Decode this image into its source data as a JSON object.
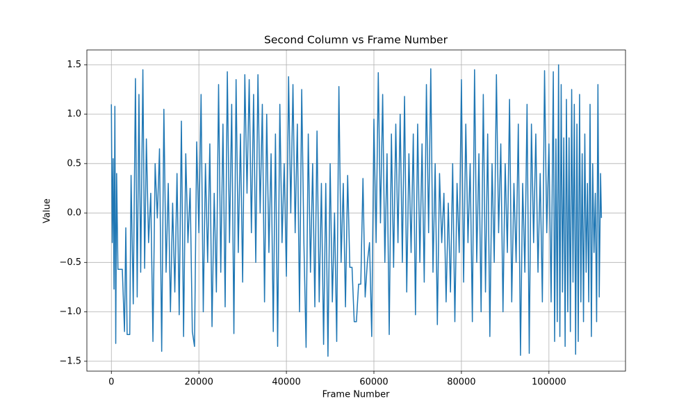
{
  "chart_data": {
    "type": "line",
    "title": "Second Column vs Frame Number",
    "xlabel": "Frame Number",
    "ylabel": "Value",
    "x": [
      0,
      200,
      400,
      600,
      800,
      1000,
      1200,
      1500,
      2500,
      3000,
      3300,
      3600,
      4200,
      4500,
      5000,
      5500,
      5900,
      6300,
      6700,
      7200,
      7600,
      8000,
      8500,
      9000,
      9500,
      10000,
      10500,
      11000,
      11500,
      12000,
      12500,
      13000,
      13500,
      14000,
      14500,
      15000,
      15500,
      16000,
      16500,
      17000,
      17500,
      18000,
      18500,
      19000,
      19500,
      20000,
      20500,
      21000,
      21500,
      22000,
      22500,
      23000,
      23500,
      24000,
      24500,
      25000,
      25500,
      26000,
      26500,
      27000,
      27500,
      28000,
      28500,
      29000,
      29500,
      30000,
      30500,
      31000,
      31500,
      32000,
      32500,
      33000,
      33500,
      34000,
      34500,
      35000,
      35500,
      36000,
      36500,
      37000,
      37500,
      38000,
      38500,
      39000,
      39500,
      40000,
      40500,
      41000,
      41500,
      42000,
      42500,
      43000,
      43500,
      44000,
      44500,
      45000,
      45500,
      46000,
      46500,
      47000,
      47500,
      48000,
      48500,
      49000,
      49500,
      50000,
      50500,
      51000,
      51500,
      52000,
      52500,
      53000,
      53500,
      54000,
      54500,
      55000,
      55500,
      56000,
      56500,
      57000,
      57500,
      58000,
      58500,
      59000,
      59500,
      60000,
      60500,
      61000,
      61500,
      62000,
      62500,
      63000,
      63500,
      64000,
      64500,
      65000,
      65500,
      66000,
      66500,
      67000,
      67500,
      68000,
      68500,
      69000,
      69500,
      70000,
      70500,
      71000,
      71500,
      72000,
      72500,
      73000,
      73500,
      74000,
      74500,
      75000,
      75500,
      76000,
      76500,
      77000,
      77500,
      78000,
      78500,
      79000,
      79500,
      80000,
      80500,
      81000,
      81500,
      82000,
      82500,
      83000,
      83500,
      84000,
      84500,
      85000,
      85500,
      86000,
      86500,
      87000,
      87500,
      88000,
      88500,
      89000,
      89500,
      90000,
      90500,
      91000,
      91500,
      92000,
      92500,
      93000,
      93500,
      94000,
      94500,
      95000,
      95500,
      96000,
      96500,
      97000,
      97500,
      98000,
      98500,
      99000,
      99500,
      100000,
      100500,
      101000,
      101300,
      101600,
      101900,
      102200,
      102500,
      102800,
      103100,
      103400,
      103700,
      104000,
      104300,
      104600,
      104900,
      105200,
      105500,
      105800,
      106100,
      106400,
      106700,
      107000,
      107300,
      107600,
      107900,
      108200,
      108500,
      108800,
      109100,
      109400,
      109700,
      110000,
      110300,
      110600,
      110900,
      111200,
      111500,
      111800,
      112000
    ],
    "series": [
      {
        "color": "#1f77b4",
        "values": [
          1.1,
          -0.3,
          0.55,
          -0.77,
          1.08,
          -1.32,
          0.4,
          -0.57,
          -0.57,
          -1.2,
          -0.15,
          -1.23,
          -1.23,
          0.38,
          -0.92,
          1.36,
          -0.85,
          1.2,
          -0.6,
          1.45,
          -0.56,
          0.75,
          -0.3,
          0.2,
          -1.3,
          0.5,
          -0.05,
          0.65,
          -1.4,
          1.05,
          -0.6,
          0.3,
          -1.0,
          0.1,
          -0.8,
          0.4,
          -1.03,
          0.93,
          -1.25,
          0.6,
          -0.3,
          0.25,
          -1.2,
          -1.35,
          0.72,
          -0.2,
          1.2,
          -1.0,
          0.5,
          -0.5,
          0.7,
          -1.15,
          0.2,
          -0.8,
          1.3,
          -0.6,
          0.9,
          -0.95,
          1.43,
          -0.3,
          1.1,
          -1.22,
          1.35,
          -0.4,
          0.8,
          -0.7,
          1.4,
          0.2,
          1.35,
          -0.2,
          1.2,
          -0.5,
          1.4,
          0.0,
          1.1,
          -0.9,
          1.0,
          -0.4,
          0.6,
          -1.2,
          0.8,
          -1.35,
          1.1,
          -0.3,
          0.5,
          -0.64,
          1.38,
          0.0,
          1.3,
          -0.2,
          0.9,
          -1.0,
          1.25,
          -0.3,
          -1.36,
          0.8,
          -0.6,
          0.5,
          -0.95,
          0.83,
          -0.9,
          0.3,
          -1.33,
          0.3,
          -1.45,
          0.5,
          -0.9,
          0.0,
          -1.3,
          1.28,
          -0.5,
          0.3,
          -0.95,
          0.38,
          -0.55,
          -0.55,
          -1.1,
          -1.1,
          -0.72,
          -0.72,
          0.35,
          -0.85,
          -0.5,
          -0.3,
          -1.25,
          0.95,
          -0.3,
          1.42,
          -0.1,
          1.2,
          -0.5,
          0.6,
          -1.23,
          0.8,
          -0.55,
          0.9,
          -0.3,
          1.0,
          -0.5,
          1.18,
          -0.8,
          0.6,
          -0.4,
          0.8,
          -1.03,
          0.9,
          -0.5,
          0.7,
          -0.7,
          1.3,
          -0.2,
          1.46,
          -0.6,
          0.5,
          -1.13,
          0.4,
          -0.3,
          0.2,
          -0.9,
          0.1,
          -0.8,
          0.5,
          -1.1,
          0.3,
          -0.4,
          1.35,
          -0.7,
          0.9,
          -0.3,
          0.5,
          -1.1,
          1.45,
          -0.5,
          0.6,
          -1.0,
          1.2,
          -0.8,
          0.8,
          -1.25,
          0.5,
          -0.5,
          1.4,
          -0.2,
          0.7,
          -1.0,
          0.5,
          -0.4,
          1.15,
          -0.9,
          0.3,
          -0.5,
          0.9,
          -1.44,
          0.3,
          -0.6,
          1.1,
          -1.42,
          0.9,
          -0.3,
          0.8,
          -0.6,
          0.4,
          -0.9,
          1.44,
          -0.2,
          0.7,
          -0.9,
          1.43,
          -1.3,
          0.75,
          -1.1,
          1.5,
          -1.25,
          1.3,
          -0.8,
          0.76,
          -1.35,
          1.15,
          -1.0,
          0.76,
          -1.2,
          1.25,
          -0.7,
          1.1,
          -1.43,
          0.9,
          -1.3,
          1.2,
          -0.9,
          0.6,
          -1.1,
          0.8,
          -0.6,
          0.3,
          -0.9,
          1.1,
          -1.25,
          0.5,
          -0.4,
          0.2,
          -1.1,
          1.3,
          -0.85,
          0.4,
          -0.05
        ]
      }
    ],
    "xlim": [
      -5600,
      117500
    ],
    "ylim": [
      -1.6,
      1.65
    ],
    "xticks": [
      0,
      20000,
      40000,
      60000,
      80000,
      100000
    ],
    "yticks": [
      {
        "value": -1.5,
        "label": "−1.5"
      },
      {
        "value": -1.0,
        "label": "−1.0"
      },
      {
        "value": -0.5,
        "label": "−0.5"
      },
      {
        "value": 0,
        "label": "0.0"
      },
      0.5,
      {
        "value": 1.0,
        "label": "1.0"
      },
      1.5
    ],
    "grid": true
  }
}
